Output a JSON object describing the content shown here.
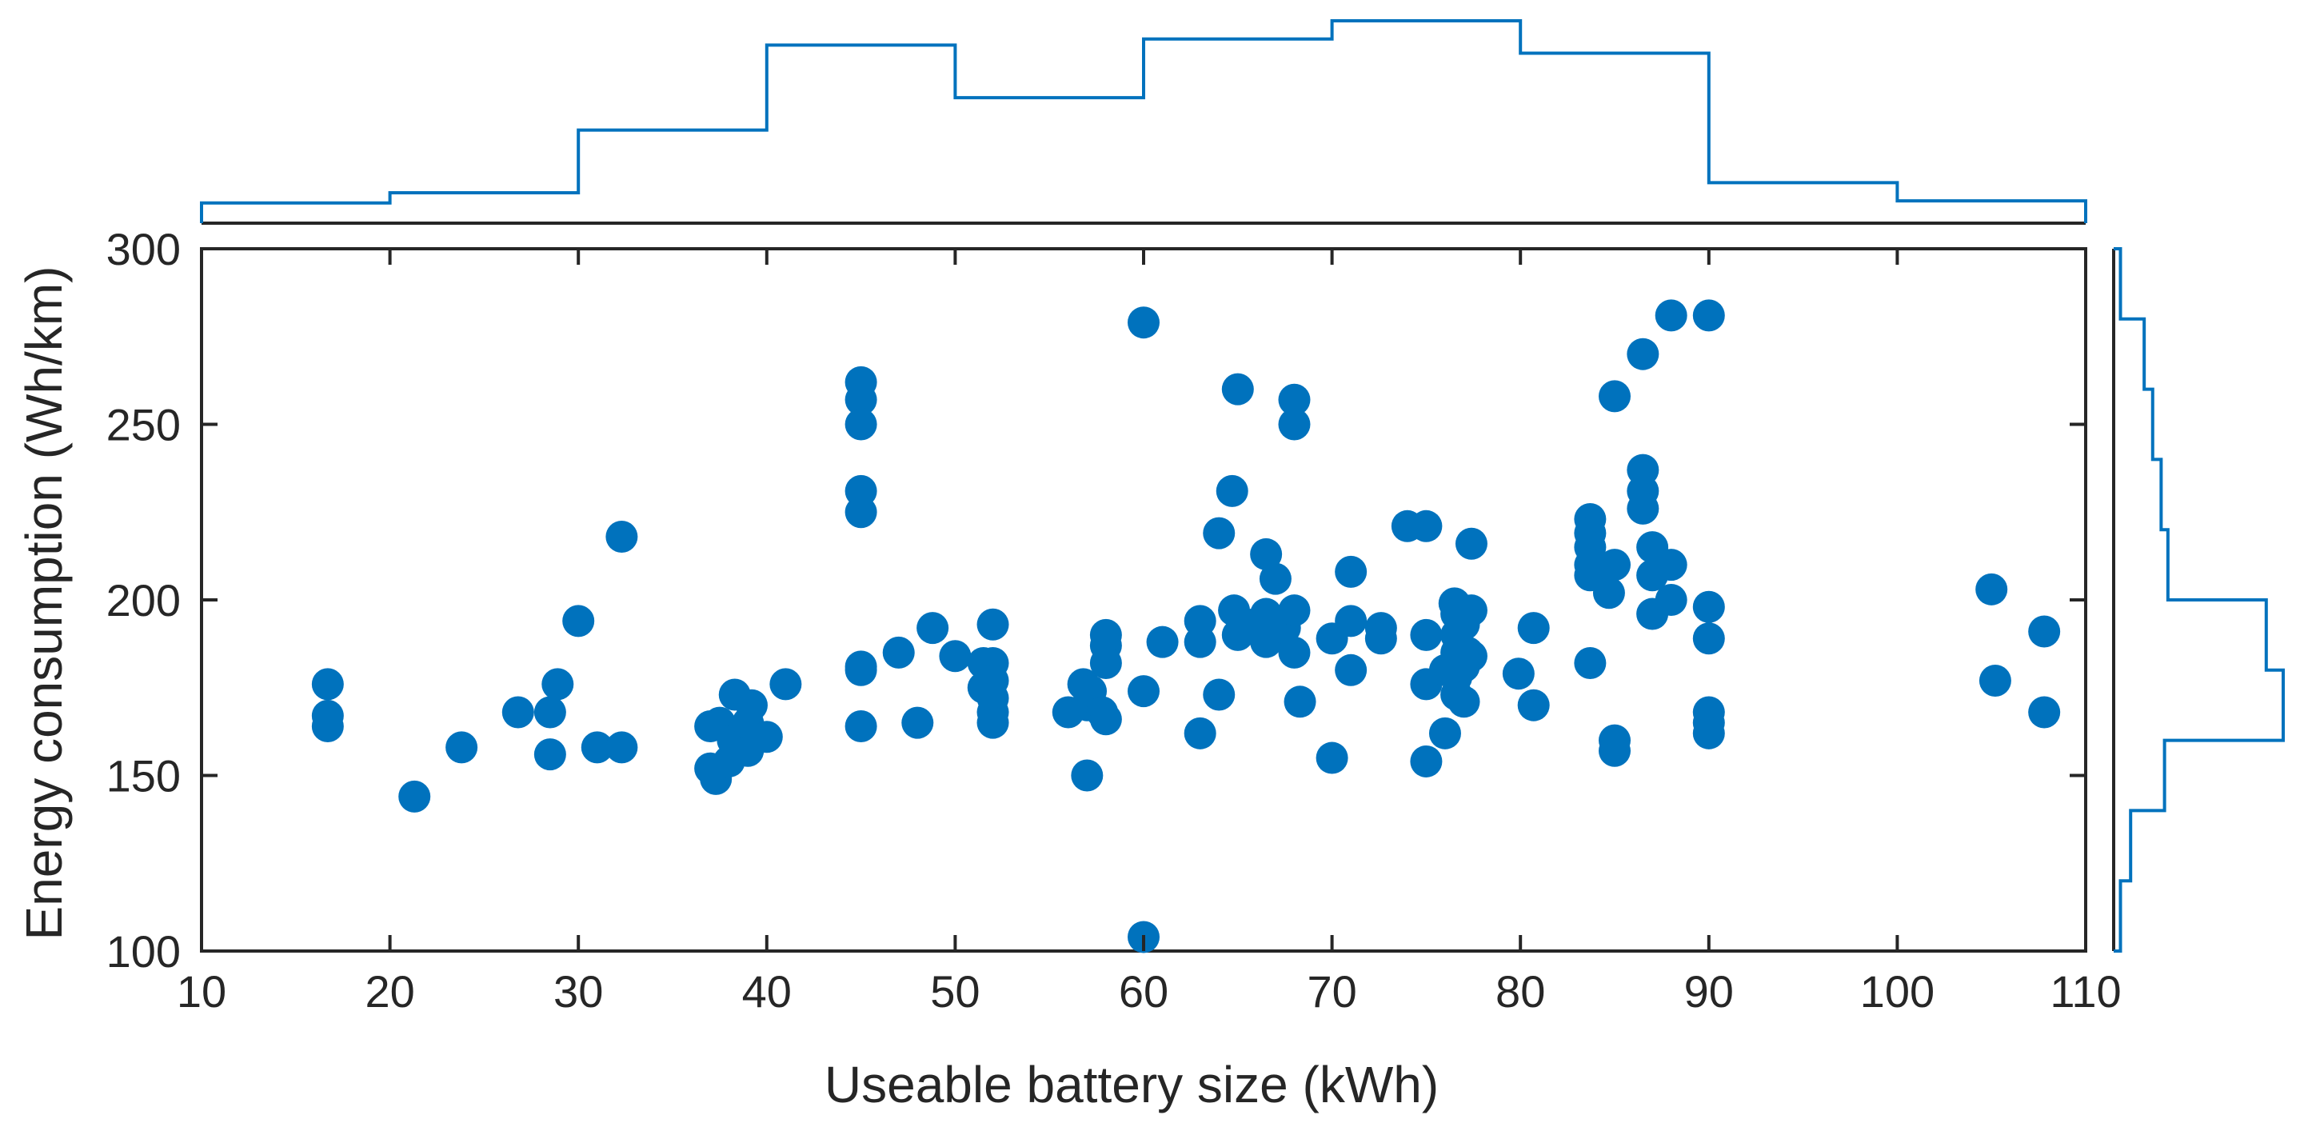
{
  "chart_data": {
    "type": "scatter",
    "title": "",
    "xlabel": "Useable battery size (kWh)",
    "ylabel": "Energy consumption (Wh/km)",
    "xlim": [
      10,
      110
    ],
    "ylim": [
      100,
      300
    ],
    "xticks": [
      10,
      20,
      30,
      40,
      50,
      60,
      70,
      80,
      90,
      100,
      110
    ],
    "yticks": [
      100,
      150,
      200,
      250,
      300
    ],
    "xtick_labels": [
      "10",
      "20",
      "30",
      "40",
      "50",
      "60",
      "70",
      "80",
      "90",
      "100",
      "110"
    ],
    "ytick_labels": [
      "100",
      "150",
      "200",
      "250",
      "300"
    ],
    "grid": false,
    "color": "#0072BD",
    "points": [
      [
        16.7,
        176
      ],
      [
        16.7,
        167
      ],
      [
        16.7,
        164
      ],
      [
        21.3,
        144
      ],
      [
        23.8,
        158
      ],
      [
        26.8,
        168
      ],
      [
        28.5,
        168
      ],
      [
        28.5,
        156
      ],
      [
        28.9,
        176
      ],
      [
        30.0,
        194
      ],
      [
        31.0,
        158
      ],
      [
        32.3,
        158
      ],
      [
        32.3,
        218
      ],
      [
        37.0,
        152
      ],
      [
        37.0,
        164
      ],
      [
        37.3,
        149
      ],
      [
        37.5,
        165
      ],
      [
        38.0,
        154
      ],
      [
        38.2,
        160
      ],
      [
        38.3,
        173
      ],
      [
        38.7,
        160
      ],
      [
        39.0,
        157
      ],
      [
        39.0,
        165
      ],
      [
        39.2,
        170
      ],
      [
        40.0,
        161
      ],
      [
        41.0,
        176
      ],
      [
        45.0,
        262
      ],
      [
        45.0,
        257
      ],
      [
        45.0,
        250
      ],
      [
        45.0,
        231
      ],
      [
        45.0,
        225
      ],
      [
        45.0,
        181
      ],
      [
        45.0,
        180
      ],
      [
        45.0,
        164
      ],
      [
        47.0,
        185
      ],
      [
        48.0,
        165
      ],
      [
        48.8,
        192
      ],
      [
        50.0,
        184
      ],
      [
        51.5,
        182
      ],
      [
        51.5,
        175
      ],
      [
        52.0,
        193
      ],
      [
        52.0,
        182
      ],
      [
        52.0,
        177
      ],
      [
        52.0,
        172
      ],
      [
        52.0,
        168
      ],
      [
        52.0,
        165
      ],
      [
        56.0,
        168
      ],
      [
        56.8,
        176
      ],
      [
        57.0,
        170
      ],
      [
        57.0,
        150
      ],
      [
        57.2,
        174
      ],
      [
        57.8,
        168
      ],
      [
        58.0,
        166
      ],
      [
        58.0,
        190
      ],
      [
        58.0,
        187
      ],
      [
        58.0,
        182
      ],
      [
        60.0,
        279
      ],
      [
        60.0,
        174
      ],
      [
        60.0,
        104
      ],
      [
        61.0,
        188
      ],
      [
        63.0,
        194
      ],
      [
        63.0,
        188
      ],
      [
        63.0,
        162
      ],
      [
        64.0,
        219
      ],
      [
        64.0,
        173
      ],
      [
        64.7,
        231
      ],
      [
        64.8,
        197
      ],
      [
        65.0,
        260
      ],
      [
        65.0,
        190
      ],
      [
        65.5,
        193
      ],
      [
        66.0,
        193
      ],
      [
        66.5,
        213
      ],
      [
        66.5,
        196
      ],
      [
        66.5,
        188
      ],
      [
        67.0,
        206
      ],
      [
        67.5,
        192
      ],
      [
        68.0,
        257
      ],
      [
        68.0,
        250
      ],
      [
        68.0,
        197
      ],
      [
        68.0,
        185
      ],
      [
        68.3,
        171
      ],
      [
        70.0,
        189
      ],
      [
        70.0,
        155
      ],
      [
        71.0,
        208
      ],
      [
        71.0,
        194
      ],
      [
        71.0,
        180
      ],
      [
        72.6,
        192
      ],
      [
        72.6,
        189
      ],
      [
        74.0,
        221
      ],
      [
        75.0,
        221
      ],
      [
        75.0,
        190
      ],
      [
        75.0,
        176
      ],
      [
        75.0,
        154
      ],
      [
        76.0,
        180
      ],
      [
        76.0,
        162
      ],
      [
        76.5,
        199
      ],
      [
        76.6,
        196
      ],
      [
        76.6,
        190
      ],
      [
        76.6,
        185
      ],
      [
        76.6,
        178
      ],
      [
        76.6,
        173
      ],
      [
        77.0,
        193
      ],
      [
        77.0,
        181
      ],
      [
        77.0,
        171
      ],
      [
        77.2,
        185
      ],
      [
        77.4,
        216
      ],
      [
        77.4,
        197
      ],
      [
        77.4,
        184
      ],
      [
        79.9,
        179
      ],
      [
        80.7,
        192
      ],
      [
        80.7,
        170
      ],
      [
        83.7,
        223
      ],
      [
        83.7,
        219
      ],
      [
        83.7,
        215
      ],
      [
        83.7,
        210
      ],
      [
        83.7,
        207
      ],
      [
        83.7,
        182
      ],
      [
        85.0,
        258
      ],
      [
        84.7,
        202
      ],
      [
        85.0,
        210
      ],
      [
        85.0,
        160
      ],
      [
        85.0,
        157
      ],
      [
        86.5,
        270
      ],
      [
        86.5,
        237
      ],
      [
        86.5,
        231
      ],
      [
        86.5,
        226
      ],
      [
        87.0,
        215
      ],
      [
        87.0,
        207
      ],
      [
        87.0,
        196
      ],
      [
        88.0,
        281
      ],
      [
        88.0,
        210
      ],
      [
        88.0,
        200
      ],
      [
        90.0,
        281
      ],
      [
        90.0,
        198
      ],
      [
        90.0,
        189
      ],
      [
        90.0,
        168
      ],
      [
        90.0,
        165
      ],
      [
        90.0,
        162
      ],
      [
        105.0,
        203
      ],
      [
        105.2,
        177
      ],
      [
        107.8,
        191
      ],
      [
        107.8,
        168
      ]
    ],
    "histogram_x": {
      "bin_edges": [
        10,
        20,
        30,
        40,
        50,
        60,
        70,
        80,
        90,
        100,
        110
      ],
      "relative_heights": [
        0.1,
        0.15,
        0.46,
        0.88,
        0.62,
        0.91,
        1.0,
        0.84,
        0.2,
        0.11
      ]
    },
    "histogram_y": {
      "bin_edges": [
        100,
        120,
        140,
        160,
        180,
        200,
        220,
        240,
        260,
        280,
        300
      ],
      "relative_heights": [
        0.04,
        0.1,
        0.3,
        1.0,
        0.9,
        0.32,
        0.28,
        0.23,
        0.18,
        0.04
      ]
    }
  }
}
